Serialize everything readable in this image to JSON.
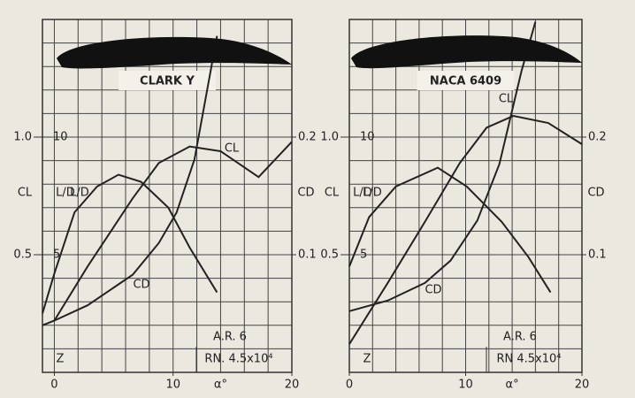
{
  "chart_data": [
    {
      "type": "line",
      "title": "CLARK Y",
      "annotations": [
        "A.R. 6",
        "RN. 4.5x10⁴",
        "Z"
      ],
      "xlabel": "α°",
      "ylabel": "CL",
      "y3label": "L/D",
      "y2label": "CD",
      "xlim": [
        -1,
        20
      ],
      "xticks": [
        0,
        10,
        20
      ],
      "xgrid": [
        0,
        2,
        4,
        6,
        8,
        10,
        12,
        14,
        16,
        18,
        20
      ],
      "ylim": [
        0,
        1.5
      ],
      "yticks": [
        0.5,
        {
          "value": 1,
          "label": "1.0"
        }
      ],
      "ygrid": [
        0.1,
        0.2,
        0.3,
        0.4,
        0.5,
        0.6,
        0.7,
        0.8,
        0.9,
        1,
        1.1,
        1.2,
        1.3,
        1.4
      ],
      "y3lim": [
        0,
        15
      ],
      "y3ticks": [
        5,
        10
      ],
      "y2lim": [
        0,
        0.3
      ],
      "y2ticks": [
        0.1,
        0.2
      ],
      "grid": true,
      "series": [
        {
          "name": "CL",
          "color": "#222222",
          "axis": "y",
          "x": [
            0,
            2.8,
            6.6,
            8.8,
            11.4,
            14,
            17.2,
            20
          ],
          "values": [
            0.22,
            0.45,
            0.74,
            0.89,
            0.96,
            0.94,
            0.83,
            0.98
          ]
        },
        {
          "name": "L/D",
          "color": "#222222",
          "axis": "y3",
          "x": [
            -1,
            0,
            1.7,
            3.6,
            5.4,
            7.3,
            9.6,
            11.4,
            13.7
          ],
          "values": [
            2.5,
            4.2,
            6.8,
            7.9,
            8.4,
            8.1,
            7.0,
            5.3,
            3.4
          ]
        },
        {
          "name": "CD",
          "color": "#222222",
          "axis": "y2",
          "x": [
            -1,
            0,
            2.8,
            6.6,
            8.8,
            10.3,
            11.8,
            13.7
          ],
          "values": [
            0.04,
            0.044,
            0.057,
            0.083,
            0.11,
            0.136,
            0.181,
            0.286
          ]
        }
      ]
    },
    {
      "type": "line",
      "title": "NACA 6409",
      "annotations": [
        "A.R. 6",
        "RN  4.5x10⁴",
        "Z"
      ],
      "xlabel": "α°",
      "ylabel": "CL",
      "y3label": "L/D",
      "y2label": "CD",
      "xlim": [
        0,
        20
      ],
      "xticks": [
        0,
        10,
        20
      ],
      "xgrid": [
        0,
        2,
        4,
        6,
        8,
        10,
        12,
        14,
        16,
        18,
        20
      ],
      "ylim": [
        0,
        1.5
      ],
      "yticks": [
        0.5,
        {
          "value": 1,
          "label": "1.0"
        }
      ],
      "ygrid": [
        0.1,
        0.2,
        0.3,
        0.4,
        0.5,
        0.6,
        0.7,
        0.8,
        0.9,
        1,
        1.1,
        1.2,
        1.3,
        1.4
      ],
      "y3lim": [
        0,
        15
      ],
      "y3ticks": [
        5,
        10
      ],
      "y2lim": [
        0,
        0.3
      ],
      "y2ticks": [
        0.1,
        0.2
      ],
      "grid": true,
      "series": [
        {
          "name": "CL",
          "color": "#222222",
          "axis": "y",
          "x": [
            0,
            3.3,
            6.5,
            9.5,
            11.8,
            14.1,
            17.1,
            20
          ],
          "values": [
            0.12,
            0.38,
            0.64,
            0.89,
            1.04,
            1.09,
            1.06,
            0.97
          ]
        },
        {
          "name": "L/D",
          "color": "#222222",
          "axis": "y3",
          "x": [
            0,
            1.7,
            4,
            7.6,
            10.1,
            13.1,
            15.4,
            17.3
          ],
          "values": [
            4.5,
            6.6,
            7.9,
            8.7,
            7.9,
            6.4,
            4.9,
            3.4
          ]
        },
        {
          "name": "CD",
          "color": "#222222",
          "axis": "y2",
          "x": [
            0,
            3.3,
            6.5,
            8.7,
            11,
            12.9,
            14.8,
            16
          ],
          "values": [
            0.052,
            0.061,
            0.076,
            0.095,
            0.129,
            0.177,
            0.256,
            0.298
          ]
        }
      ]
    }
  ]
}
